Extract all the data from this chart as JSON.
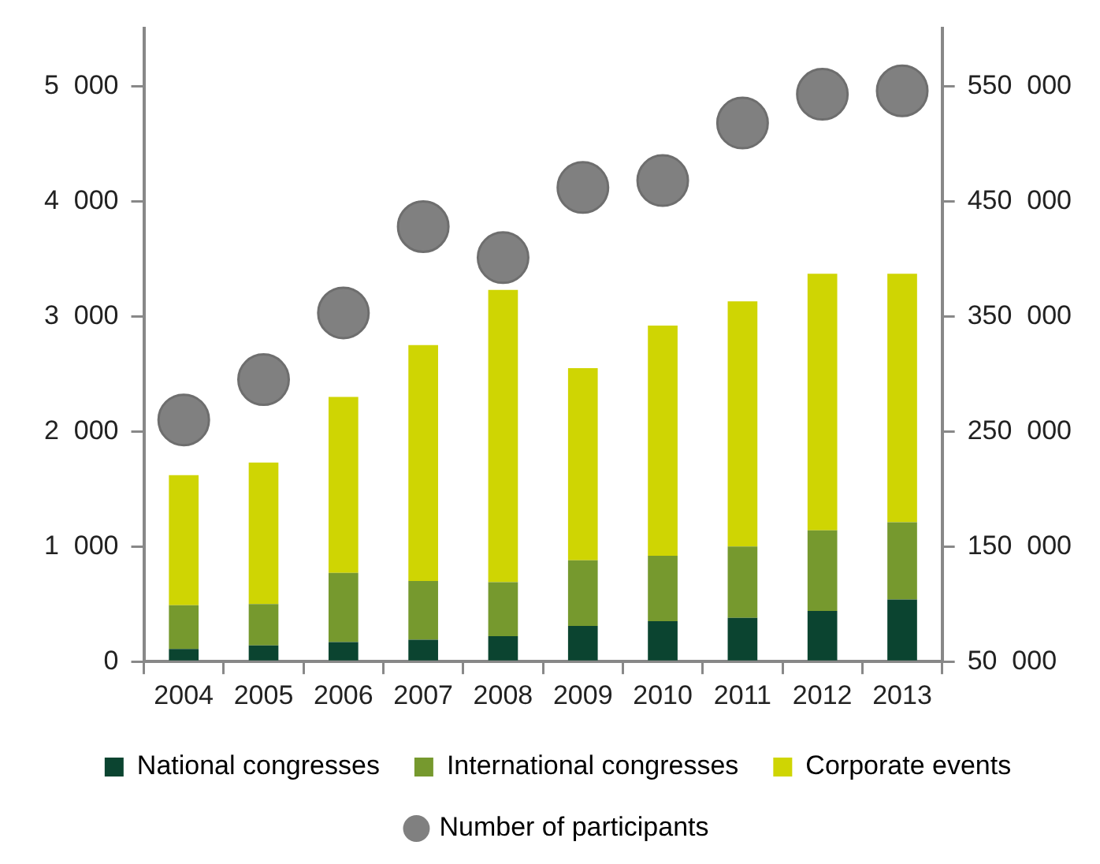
{
  "chart_data": {
    "type": "bar",
    "stacked": true,
    "grid": false,
    "legend": "bottom",
    "marker": "circle",
    "categories": [
      "2004",
      "2005",
      "2006",
      "2007",
      "2008",
      "2009",
      "2010",
      "2011",
      "2012",
      "2013"
    ],
    "series": [
      {
        "name": "National congresses",
        "color": "#0b4430",
        "values": [
          110,
          140,
          170,
          190,
          220,
          310,
          350,
          380,
          440,
          540
        ]
      },
      {
        "name": "International congresses",
        "color": "#76992e",
        "values": [
          380,
          360,
          600,
          510,
          470,
          570,
          570,
          620,
          700,
          670
        ]
      },
      {
        "name": "Corporate events",
        "color": "#cfd503",
        "values": [
          1130,
          1230,
          1530,
          2050,
          2540,
          1670,
          2000,
          2130,
          2230,
          2160
        ]
      },
      {
        "name": "Number of participants",
        "type": "scatter",
        "axis": "y2",
        "color": "#808080",
        "values": [
          260000,
          295000,
          353000,
          428000,
          401000,
          462000,
          468000,
          518000,
          543000,
          546000
        ]
      }
    ],
    "ylim": [
      0,
      5500
    ],
    "yticks": [
      0,
      {
        "value": 1000,
        "label": "1  000"
      },
      {
        "value": 2000,
        "label": "2  000"
      },
      {
        "value": 3000,
        "label": "3  000"
      },
      {
        "value": 4000,
        "label": "4  000"
      },
      {
        "value": 5000,
        "label": "5  000"
      }
    ],
    "y2lim": [
      50000,
      600000
    ],
    "y2ticks": [
      {
        "value": 50000,
        "label": "50  000"
      },
      {
        "value": 150000,
        "label": "150  000"
      },
      {
        "value": 250000,
        "label": "250  000"
      },
      {
        "value": 350000,
        "label": "350  000"
      },
      {
        "value": 450000,
        "label": "450  000"
      },
      {
        "value": 550000,
        "label": "550  000"
      }
    ]
  }
}
